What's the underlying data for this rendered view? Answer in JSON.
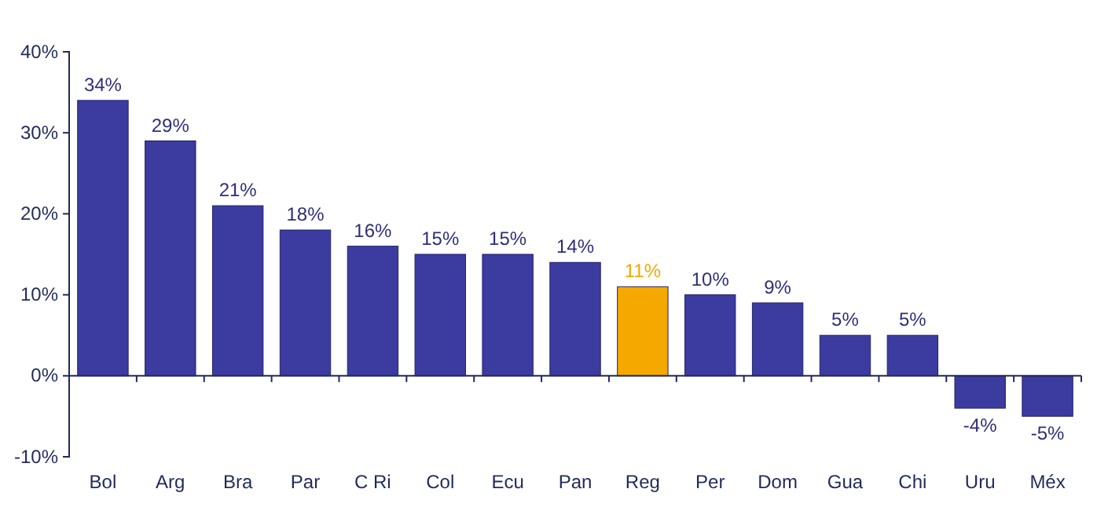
{
  "chart_data": {
    "type": "bar",
    "categories": [
      "Bol",
      "Arg",
      "Bra",
      "Par",
      "C Ri",
      "Col",
      "Ecu",
      "Pan",
      "Reg",
      "Per",
      "Dom",
      "Gua",
      "Chi",
      "Uru",
      "Méx"
    ],
    "values": [
      34,
      29,
      21,
      18,
      16,
      15,
      15,
      14,
      11,
      10,
      9,
      5,
      5,
      -4,
      -5
    ],
    "colors": [
      "#3b3ba0",
      "#3b3ba0",
      "#3b3ba0",
      "#3b3ba0",
      "#3b3ba0",
      "#3b3ba0",
      "#3b3ba0",
      "#3b3ba0",
      "#f5a800",
      "#3b3ba0",
      "#3b3ba0",
      "#3b3ba0",
      "#3b3ba0",
      "#3b3ba0",
      "#3b3ba0"
    ],
    "value_labels": [
      "34%",
      "29%",
      "21%",
      "18%",
      "16%",
      "15%",
      "15%",
      "14%",
      "11%",
      "10%",
      "9%",
      "5%",
      "5%",
      "-4%",
      "-5%"
    ],
    "ylim": [
      -10,
      40
    ],
    "yticks": [
      {
        "value": -10,
        "label": "-10%"
      },
      {
        "value": 0,
        "label": "0%"
      },
      {
        "value": 10,
        "label": "10%"
      },
      {
        "value": 20,
        "label": "20%"
      },
      {
        "value": 30,
        "label": "30%"
      },
      {
        "value": 40,
        "label": "40%"
      }
    ],
    "grid": false
  }
}
